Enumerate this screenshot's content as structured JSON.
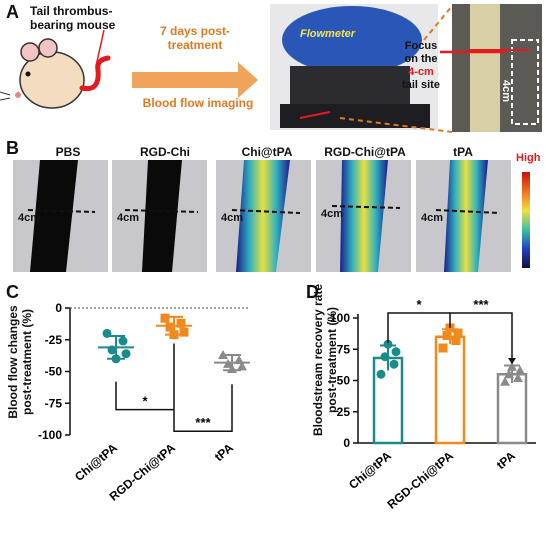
{
  "panelA": {
    "letter": "A",
    "mouse_label": "Tail thrombus-\nbearing mouse",
    "arrow_top": "7 days post-\ntreatment",
    "arrow_bottom": "Blood flow imaging",
    "device_label": "Flowmeter",
    "focus_text_1": "Focus",
    "focus_text_2": "on the",
    "focus_text_3": "4-cm",
    "focus_text_4": "tail site",
    "ruler_label": "4cm"
  },
  "panelB": {
    "letter": "B",
    "groups": [
      "PBS",
      "RGD-Chi",
      "Chi@tPA",
      "RGD-Chi@tPA",
      "tPA"
    ],
    "site_label": "4cm",
    "colorbar_label": "High",
    "colors": {
      "perfusion_low": "#1c1c5a",
      "perfusion_high": "#f0e84a",
      "background": "#c8c8cc"
    }
  },
  "panelC": {
    "letter": "C",
    "ylabel": "Blood flow changes\npost-treatment (%)",
    "sig1": "*",
    "sig2": "***",
    "colors": {
      "Chi@tPA": "#1a8a8a",
      "RGD-Chi@tPA": "#f08a1e",
      "tPA": "#8a8a8a"
    }
  },
  "panelD": {
    "letter": "D",
    "ylabel": "Bloodstream recovery rate\npost-treatment (%)",
    "sig1": "*",
    "sig2": "***"
  },
  "chart_data": [
    {
      "type": "scatter",
      "panel": "C",
      "categories": [
        "Chi@tPA",
        "RGD-Chi@tPA",
        "tPA"
      ],
      "ylim": [
        -100,
        0
      ],
      "yticks": [
        0,
        -25,
        -50,
        -75,
        -100
      ],
      "ytick_labels": [
        "0",
        "-25",
        "-50",
        "-75",
        "-100"
      ],
      "reference_line": 0,
      "series": [
        {
          "category": "Chi@tPA",
          "mean": -31,
          "sd": 9,
          "points": [
            -20,
            -26,
            -33,
            -36,
            -40
          ]
        },
        {
          "category": "RGD-Chi@tPA",
          "mean": -14,
          "sd": 7,
          "points": [
            -8,
            -12,
            -15,
            -19,
            -21
          ]
        },
        {
          "category": "tPA",
          "mean": -43,
          "sd": 6,
          "points": [
            -37,
            -41,
            -44,
            -46,
            -48
          ]
        }
      ],
      "significance": [
        {
          "groups": [
            "Chi@tPA",
            "RGD-Chi@tPA"
          ],
          "label": "*"
        },
        {
          "groups": [
            "RGD-Chi@tPA",
            "tPA"
          ],
          "label": "***"
        }
      ]
    },
    {
      "type": "bar",
      "panel": "D",
      "categories": [
        "Chi@tPA",
        "RGD-Chi@tPA",
        "tPA"
      ],
      "values": [
        68,
        85,
        55
      ],
      "errors": [
        10,
        6,
        7
      ],
      "ylim": [
        0,
        100
      ],
      "yticks": [
        0,
        25,
        50,
        75,
        100
      ],
      "ytick_labels": [
        "0",
        "25",
        "50",
        "75",
        "100"
      ],
      "points": [
        [
          55,
          63,
          69,
          73,
          79
        ],
        [
          76,
          82,
          86,
          88,
          92
        ],
        [
          49,
          52,
          55,
          58,
          61
        ]
      ],
      "significance": [
        {
          "groups": [
            "Chi@tPA",
            "RGD-Chi@tPA"
          ],
          "label": "*"
        },
        {
          "groups": [
            "RGD-Chi@tPA",
            "tPA"
          ],
          "label": "***"
        }
      ]
    }
  ]
}
